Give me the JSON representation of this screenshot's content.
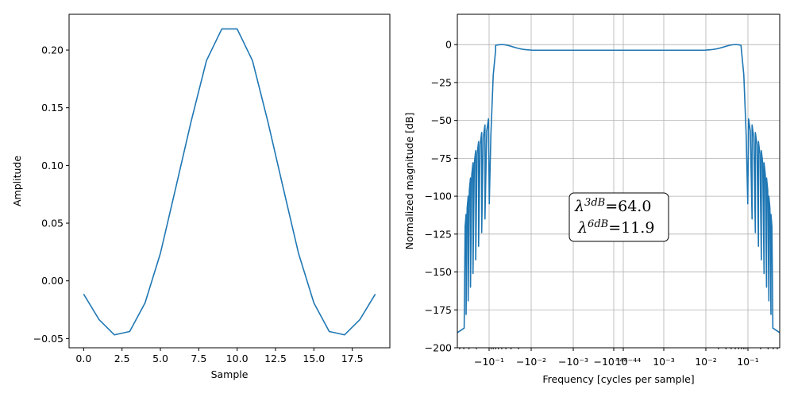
{
  "chart_data": [
    {
      "type": "line",
      "xlabel": "Sample",
      "ylabel": "Amplitude",
      "xlim": [
        -0.95,
        19.95
      ],
      "ylim": [
        -0.058,
        0.231
      ],
      "xticks": [
        "0.0",
        "2.5",
        "5.0",
        "7.5",
        "10.0",
        "12.5",
        "15.0",
        "17.5"
      ],
      "yticks": [
        "−0.05",
        "0.00",
        "0.05",
        "0.10",
        "0.15",
        "0.20"
      ],
      "grid": false,
      "series": [
        {
          "x": [
            0,
            1,
            2,
            3,
            4,
            5,
            6,
            7,
            8,
            9,
            10,
            11,
            12,
            13,
            14,
            15,
            16,
            17,
            18,
            19
          ],
          "values": [
            -0.0115,
            -0.0335,
            -0.0468,
            -0.0439,
            -0.0191,
            0.0238,
            0.0806,
            0.1381,
            0.1908,
            0.2183,
            0.2183,
            0.1908,
            0.1381,
            0.0806,
            0.0238,
            -0.0191,
            -0.0439,
            -0.0468,
            -0.0335,
            -0.0115
          ]
        }
      ]
    },
    {
      "type": "line",
      "xlabel": "Frequency [cycles per sample]",
      "ylabel": "Normalized magnitude [dB]",
      "xscale": "symlog",
      "xlim": [
        -0.5,
        0.5
      ],
      "ylim": [
        -200,
        20
      ],
      "xticks": [
        "−10⁻¹",
        "−10⁻²",
        "−10⁻³",
        "−10⁻⁴⁴",
        "10⁻⁴⁴",
        "10⁻³",
        "10⁻²",
        "10⁻¹"
      ],
      "yticks": [
        "−200",
        "−175",
        "−150",
        "−125",
        "−100",
        "−75",
        "−50",
        "−25",
        "0"
      ],
      "grid": true,
      "passband_db": -3.7,
      "peak": {
        "x": 0.055,
        "y": 0
      },
      "annotation": {
        "line1_sym": "λ",
        "line1_sup": "3dB",
        "line1_val": "=64.0",
        "line2_sym": "λ",
        "line2_sup": "6dB",
        "line2_val": "=11.9"
      }
    }
  ]
}
